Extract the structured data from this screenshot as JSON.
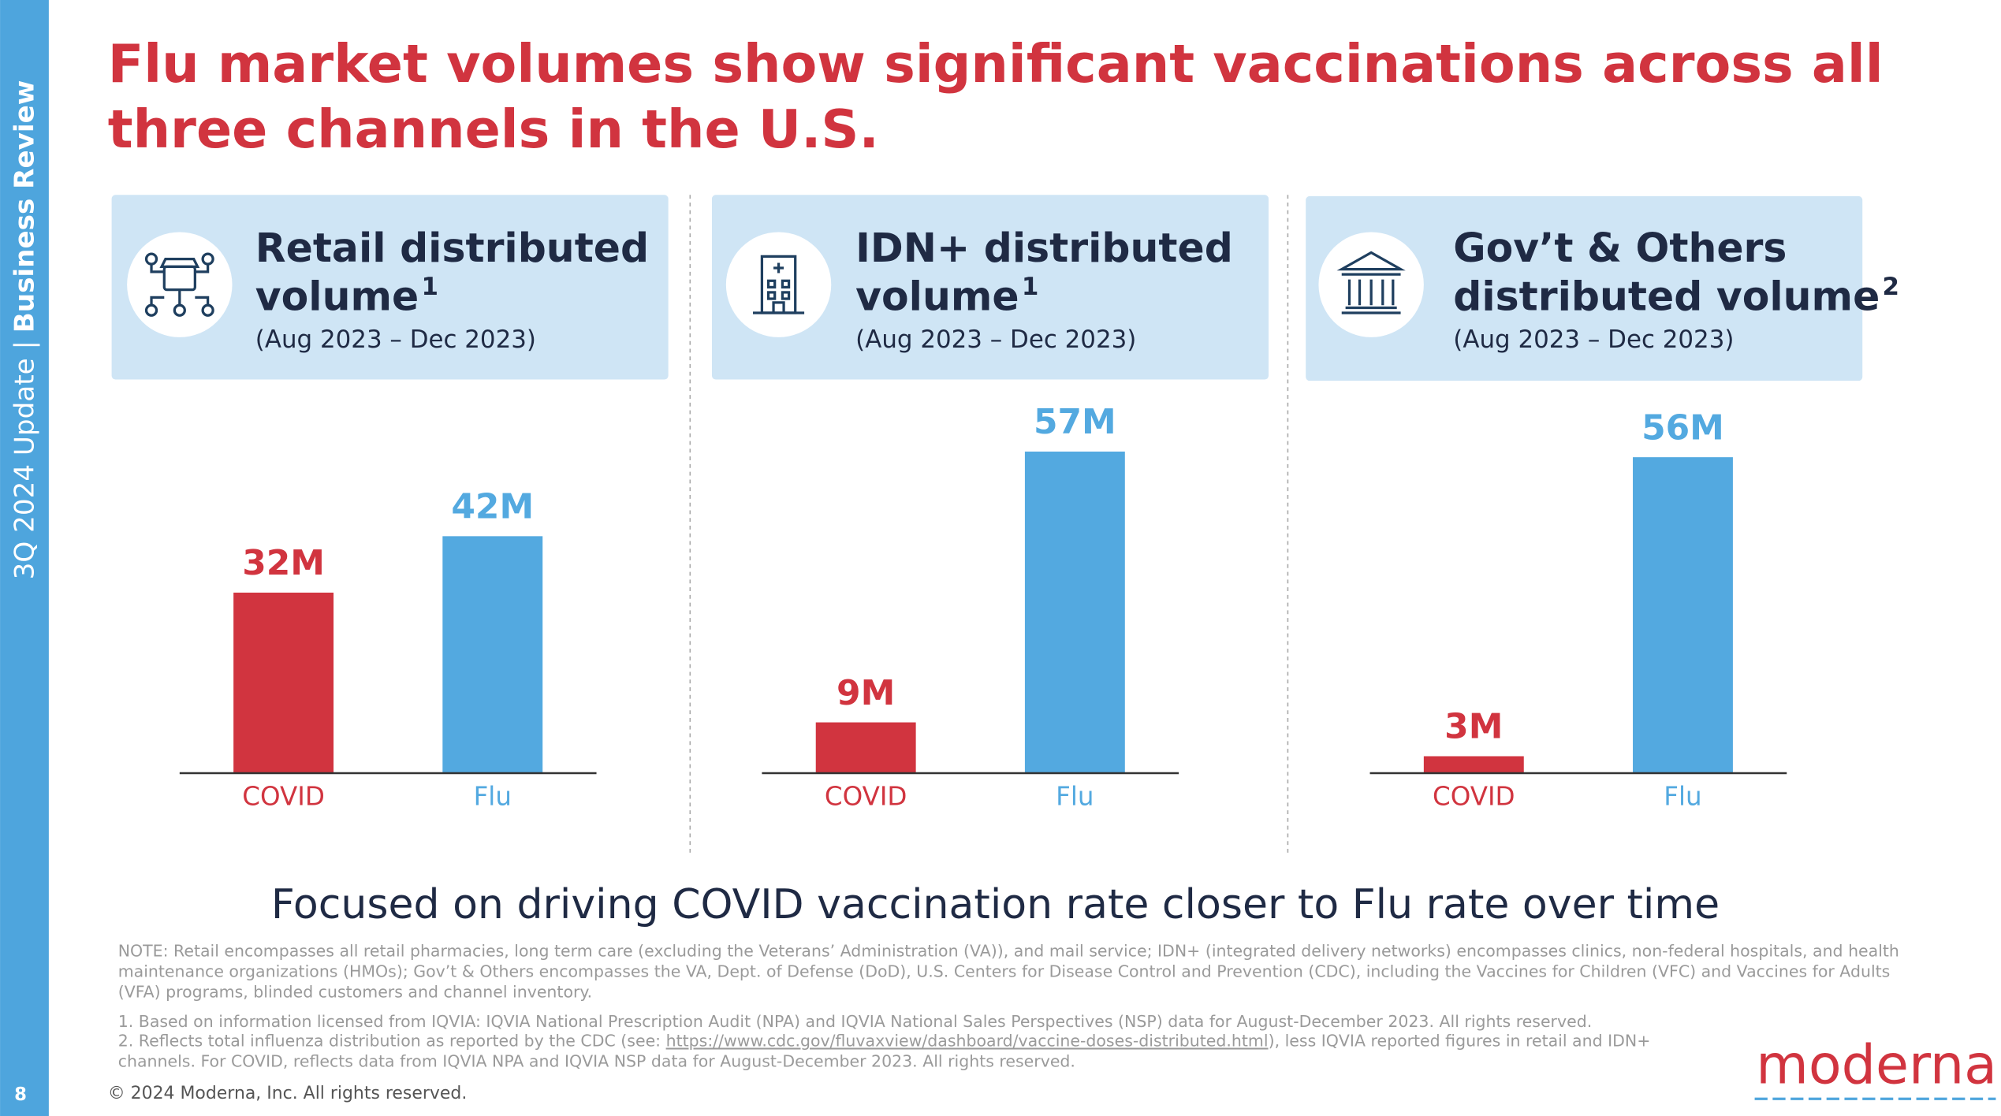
{
  "slide": {
    "title_lines": [
      "Flu market volumes show significant vaccinations across all",
      "three channels in the U.S."
    ],
    "sidebar": {
      "period": "3Q 2024 Update |",
      "section": "Business Review"
    },
    "page_number": "8",
    "takeaway": "Focused on driving COVID vaccination rate closer to Flu rate over time",
    "notes": [
      "NOTE: Retail encompasses all retail pharmacies, long term care (excluding the Veterans’ Administration (VA)), and mail service; IDN+ (integrated delivery networks) encompasses clinics, non-federal hospitals, and health",
      "maintenance organizations (HMOs); Gov’t & Others encompasses the VA, Dept. of Defense (DoD), U.S. Centers for Disease Control and Prevention (CDC), including the Vaccines for Children (VFC) and Vaccines for Adults",
      "(VFA) programs, blinded customers and channel inventory."
    ],
    "footnotes": {
      "first": "1. Based on information licensed from IQVIA: IQVIA National Prescription Audit (NPA) and IQVIA National Sales Perspectives (NSP) data for August-December 2023. All rights reserved.",
      "second_start": "2. Reflects total influenza distribution as reported by the CDC (see: ",
      "second_url": "https://www.cdc.gov/fluvaxview/dashboard/vaccine-doses-distributed.html",
      "second_end": "), less IQVIA reported figures in retail and IDN+",
      "third": "channels.  For COVID, reflects data from IQVIA NPA and IQVIA NSP data for August-December 2023. All rights reserved."
    },
    "copyright": "© 2024 Moderna, Inc. All rights reserved.",
    "logo": "moderna"
  },
  "chart_data": [
    {
      "type": "bar",
      "title_lines": [
        "Retail distributed",
        "volume"
      ],
      "title_ref": "1",
      "subtitle": "(Aug 2023 – Dec 2023)",
      "categories": [
        "COVID",
        "Flu"
      ],
      "values": [
        32,
        42
      ],
      "value_labels": [
        "32M",
        "42M"
      ],
      "colors": [
        "#d1343f",
        "#53a9e0"
      ]
    },
    {
      "type": "bar",
      "title_lines": [
        "IDN+ distributed",
        "volume"
      ],
      "title_ref": "1",
      "subtitle": "(Aug 2023 – Dec 2023)",
      "categories": [
        "COVID",
        "Flu"
      ],
      "values": [
        9,
        57
      ],
      "value_labels": [
        "9M",
        "57M"
      ],
      "colors": [
        "#d1343f",
        "#53a9e0"
      ]
    },
    {
      "type": "bar",
      "title_lines": [
        "Gov’t & Others",
        "distributed volume"
      ],
      "title_ref": "2",
      "subtitle": "(Aug 2023 – Dec 2023)",
      "categories": [
        "COVID",
        "Flu"
      ],
      "values": [
        3,
        56
      ],
      "value_labels": [
        "3M",
        "56M"
      ],
      "colors": [
        "#d1343f",
        "#53a9e0"
      ]
    }
  ]
}
